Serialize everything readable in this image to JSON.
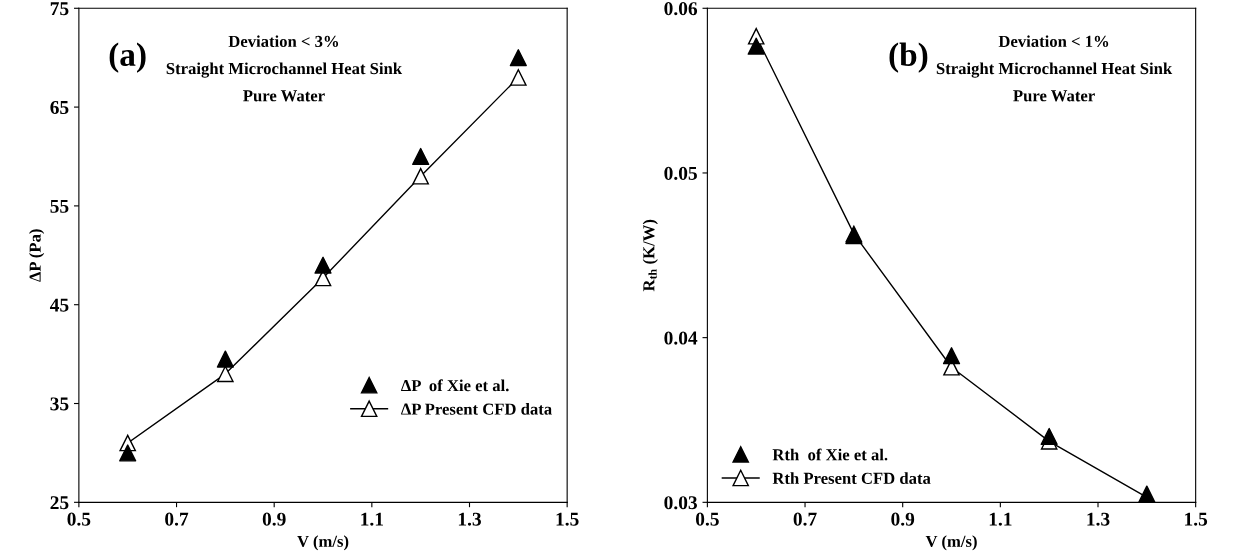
{
  "chart_data": [
    {
      "type": "scatter",
      "xlabel": "V (m/s)",
      "ylabel": "ΔP (Pa)",
      "annotations": [
        "(a)",
        "Deviation < 3%",
        "Straight Microchannel Heat Sink",
        "Pure Water"
      ],
      "x": [
        0.6,
        0.8,
        1.0,
        1.2,
        1.4
      ],
      "series": [
        {
          "name": "ΔP  of Xie et al.",
          "color": "#000000",
          "values": [
            30,
            39.5,
            49,
            60,
            70
          ]
        },
        {
          "name": "ΔP Present CFD data",
          "type": "line",
          "color": "#000000",
          "values": [
            31,
            38,
            47.7,
            58,
            68
          ]
        }
      ],
      "xlim": [
        0.5,
        1.5
      ],
      "xticks": [
        0.5,
        0.7,
        0.9,
        1.1,
        1.3,
        1.5
      ],
      "ylim": [
        25,
        75
      ],
      "yticks": [
        25,
        35,
        45,
        55,
        65,
        75
      ],
      "legend": "bottom right",
      "marker": "triangle",
      "grid": false
    },
    {
      "type": "scatter",
      "xlabel": "V (m/s)",
      "ylabel": "R$_{th}$ (K/W)",
      "annotations": [
        "(b)",
        "Deviation < 1%",
        "Straight Microchannel Heat Sink",
        "Pure Water"
      ],
      "x": [
        0.6,
        0.8,
        1.0,
        1.2,
        1.4
      ],
      "series": [
        {
          "name": "Rth  of Xie et al.",
          "color": "#000000",
          "values": [
            0.0577,
            0.0462,
            0.0389,
            0.034,
            0.0305
          ]
        },
        {
          "name": "Rth Present CFD data",
          "type": "line",
          "color": "#000000",
          "values": [
            0.0583,
            0.0463,
            0.0382,
            0.0337,
            0.0303
          ]
        }
      ],
      "xlim": [
        0.5,
        1.5
      ],
      "xticks": [
        0.5,
        0.7,
        0.9,
        1.1,
        1.3,
        1.5
      ],
      "ylim": [
        0.03,
        0.06
      ],
      "yticks": [
        0.03,
        0.04,
        0.05,
        0.06
      ],
      "legend": "bottom left",
      "marker": "triangle",
      "grid": false
    }
  ]
}
